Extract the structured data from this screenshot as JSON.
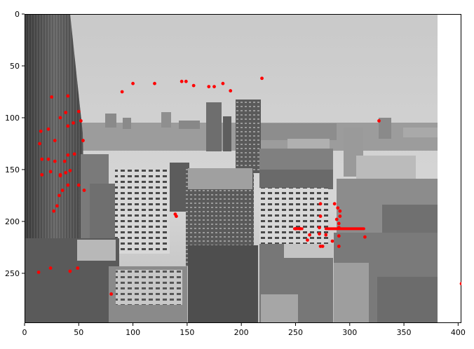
{
  "chart_data": {
    "type": "scatter",
    "background": "grayscale-photo-city-skyline",
    "xlim": [
      0,
      403
    ],
    "ylim": [
      298,
      0
    ],
    "y_inverted": true,
    "image_extent": {
      "x": [
        0,
        400
      ],
      "y": [
        0,
        298
      ]
    },
    "grid": false,
    "x_ticks": [
      {
        "value": 0,
        "label": "0"
      },
      {
        "value": 50,
        "label": "50"
      },
      {
        "value": 100,
        "label": "100"
      },
      {
        "value": 150,
        "label": "150"
      },
      {
        "value": 200,
        "label": "200"
      },
      {
        "value": 250,
        "label": "250"
      },
      {
        "value": 300,
        "label": "300"
      },
      {
        "value": 350,
        "label": "350"
      },
      {
        "value": 400,
        "label": "400"
      }
    ],
    "y_ticks": [
      {
        "value": 0,
        "label": "0"
      },
      {
        "value": 50,
        "label": "50"
      },
      {
        "value": 100,
        "label": "100"
      },
      {
        "value": 150,
        "label": "150"
      },
      {
        "value": 200,
        "label": "200"
      },
      {
        "value": 250,
        "label": "250"
      }
    ],
    "marker_color": "#ff0000",
    "points": [
      [
        90,
        75
      ],
      [
        100,
        67
      ],
      [
        120,
        67
      ],
      [
        145,
        65
      ],
      [
        149,
        65
      ],
      [
        156,
        69
      ],
      [
        170,
        70
      ],
      [
        175,
        70
      ],
      [
        183,
        67
      ],
      [
        190,
        74
      ],
      [
        219,
        62
      ],
      [
        327,
        103
      ],
      [
        25,
        80
      ],
      [
        40,
        79
      ],
      [
        15,
        113
      ],
      [
        22,
        111
      ],
      [
        28,
        122
      ],
      [
        33,
        100
      ],
      [
        38,
        95
      ],
      [
        40,
        108
      ],
      [
        45,
        105
      ],
      [
        50,
        94
      ],
      [
        52,
        103
      ],
      [
        54,
        122
      ],
      [
        14,
        125
      ],
      [
        16,
        140
      ],
      [
        22,
        140
      ],
      [
        24,
        152
      ],
      [
        16,
        155
      ],
      [
        28,
        142
      ],
      [
        33,
        156
      ],
      [
        37,
        142
      ],
      [
        40,
        136
      ],
      [
        46,
        135
      ],
      [
        42,
        151
      ],
      [
        38,
        153
      ],
      [
        40,
        165
      ],
      [
        35,
        170
      ],
      [
        50,
        165
      ],
      [
        55,
        170
      ],
      [
        32,
        175
      ],
      [
        30,
        185
      ],
      [
        27,
        190
      ],
      [
        33,
        155
      ],
      [
        140,
        195
      ],
      [
        139,
        193
      ],
      [
        13,
        249
      ],
      [
        24,
        245
      ],
      [
        42,
        248
      ],
      [
        49,
        245
      ],
      [
        80,
        270
      ],
      [
        403,
        260
      ],
      [
        273,
        183
      ],
      [
        286,
        183
      ],
      [
        289,
        187
      ],
      [
        291,
        190
      ],
      [
        291,
        195
      ],
      [
        273,
        195
      ],
      [
        288,
        198
      ],
      [
        290,
        202
      ],
      [
        290,
        206
      ],
      [
        250,
        207
      ],
      [
        254,
        207
      ],
      [
        272,
        206
      ],
      [
        272,
        212
      ],
      [
        278,
        213
      ],
      [
        290,
        214
      ],
      [
        263,
        213
      ],
      [
        261,
        218
      ],
      [
        273,
        224
      ],
      [
        275,
        224
      ],
      [
        290,
        224
      ],
      [
        284,
        219
      ],
      [
        314,
        215
      ]
    ],
    "segments": [
      {
        "from": [
          249,
          207
        ],
        "to": [
          256,
          207
        ]
      },
      {
        "from": [
          278,
          207
        ],
        "to": [
          313,
          207
        ]
      }
    ]
  }
}
